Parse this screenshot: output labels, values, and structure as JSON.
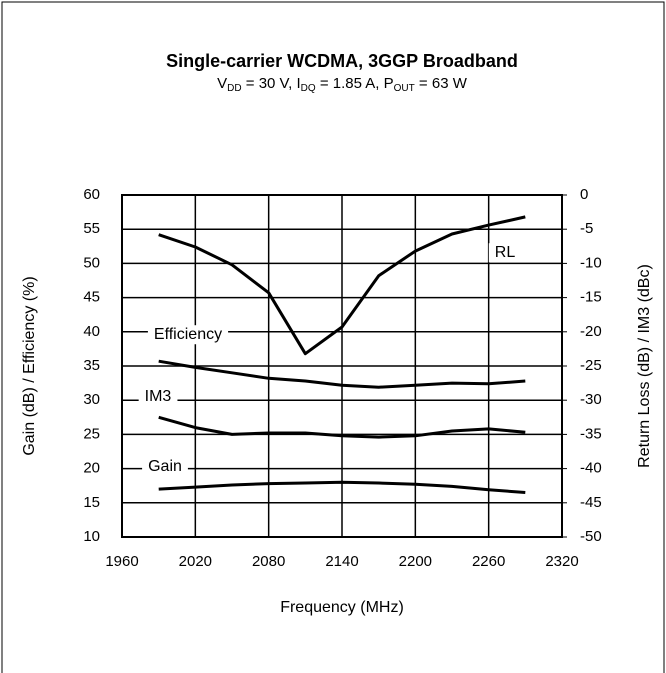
{
  "chart_data": {
    "type": "line",
    "title": "Single-carrier WCDMA, 3GGP Broadband",
    "subtitle_parts": [
      "V",
      "DD",
      " = 30 V, I",
      "DQ",
      " = 1.85 A, P",
      "OUT",
      " = 63 W"
    ],
    "x_label": "Frequency (MHz)",
    "y_label": "Gain (dB) / Efficiency (%)",
    "y2_label": "Return Loss (dB) / IM3 (dBc)",
    "x": [
      1990,
      2020,
      2050,
      2080,
      2110,
      2140,
      2170,
      2200,
      2230,
      2260,
      2290
    ],
    "series": [
      {
        "name": "RL",
        "color": "#000000",
        "axis": "y2",
        "values": [
          -5.8,
          -7.6,
          -10.2,
          -14.3,
          -23.2,
          -19.3,
          -11.8,
          -8.2,
          -5.7,
          -4.4,
          -3.2
        ]
      },
      {
        "name": "Efficiency",
        "color": "#000000",
        "values": [
          35.7,
          34.8,
          34,
          33.2,
          32.8,
          32.2,
          31.9,
          32.2,
          32.5,
          32.4,
          32.8
        ]
      },
      {
        "name": "IM3",
        "color": "#000000",
        "axis": "y2",
        "values": [
          -32.5,
          -34,
          -35,
          -34.8,
          -34.8,
          -35.2,
          -35.4,
          -35.2,
          -34.5,
          -34.2,
          -34.7
        ]
      },
      {
        "name": "Gain",
        "color": "#000000",
        "values": [
          17,
          17.3,
          17.6,
          17.8,
          17.9,
          18,
          17.9,
          17.7,
          17.4,
          16.9,
          16.5
        ]
      }
    ],
    "xlim": [
      1960,
      2320
    ],
    "xticks": [
      1960,
      2020,
      2080,
      2140,
      2200,
      2260,
      2320
    ],
    "ylim": [
      10,
      60
    ],
    "yticks": [
      10,
      15,
      20,
      25,
      30,
      35,
      40,
      45,
      50,
      55,
      60
    ],
    "y2lim": [
      -50,
      0
    ],
    "y2ticks": [
      -50,
      -45,
      -40,
      -35,
      -30,
      -25,
      -20,
      -15,
      -10,
      -5,
      0
    ],
    "grid": true
  }
}
